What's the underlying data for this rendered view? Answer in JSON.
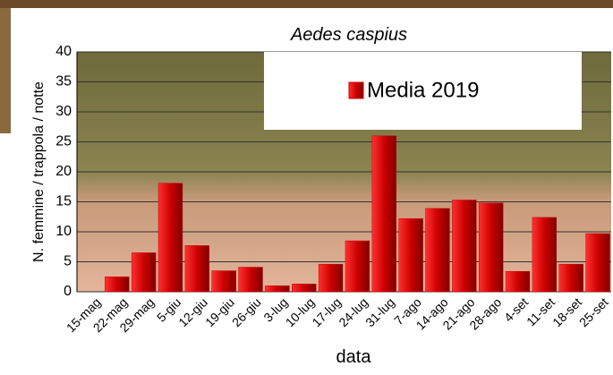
{
  "chart_data": {
    "type": "bar",
    "title": "Aedes caspius",
    "x_label": "data",
    "y_label": "N. femmine / trappola / notte",
    "categories": [
      "15-mag",
      "22-mag",
      "29-mag",
      "5-giu",
      "12-giu",
      "19-giu",
      "26-giu",
      "3-lug",
      "10-lug",
      "17-lug",
      "24-lug",
      "31-lug",
      "7-ago",
      "14-ago",
      "21-ago",
      "28-ago",
      "4-set",
      "11-set",
      "18-set",
      "25-set"
    ],
    "series": [
      {
        "name": "Media 2019",
        "color": "#cc0000",
        "values": [
          0,
          2.5,
          6.5,
          18.1,
          7.7,
          3.5,
          4.1,
          1.0,
          1.3,
          4.6,
          8.5,
          26,
          12.2,
          13.9,
          15.3,
          14.8,
          3.4,
          12.4,
          4.6,
          9.7
        ]
      }
    ],
    "ylim": [
      0,
      40
    ],
    "yticks": [
      0,
      5,
      10,
      15,
      20,
      25,
      30,
      35,
      40
    ],
    "grid": true,
    "legend": "top-right"
  }
}
